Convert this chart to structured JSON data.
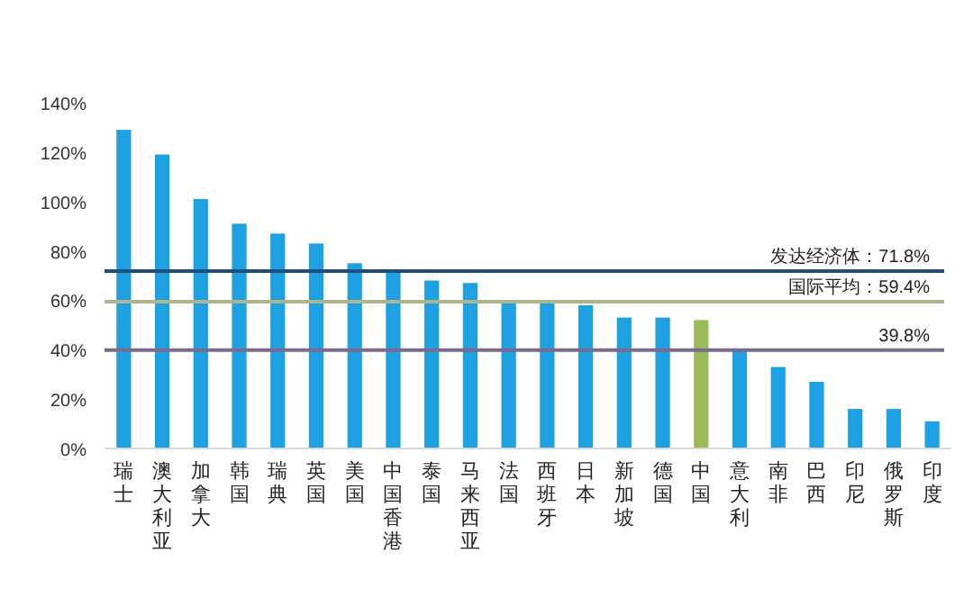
{
  "chart_data": {
    "type": "bar",
    "categories": [
      "瑞士",
      "澳大利亚",
      "加拿大",
      "韩国",
      "瑞典",
      "英国",
      "美国",
      "中国香港",
      "泰国",
      "马来西亚",
      "法国",
      "西班牙",
      "日本",
      "新加坡",
      "德国",
      "中国",
      "意大利",
      "南非",
      "巴西",
      "印尼",
      "俄罗斯",
      "印度"
    ],
    "values": [
      129,
      119,
      101,
      91,
      87,
      83,
      75,
      72,
      68,
      67,
      59,
      59,
      58,
      53,
      53,
      52,
      40,
      33,
      27,
      16,
      16,
      11
    ],
    "colors": [
      "#1da1e2",
      "#1da1e2",
      "#1da1e2",
      "#1da1e2",
      "#1da1e2",
      "#1da1e2",
      "#1da1e2",
      "#1da1e2",
      "#1da1e2",
      "#1da1e2",
      "#1da1e2",
      "#1da1e2",
      "#1da1e2",
      "#1da1e2",
      "#1da1e2",
      "#9bbb59",
      "#1da1e2",
      "#1da1e2",
      "#1da1e2",
      "#1da1e2",
      "#1da1e2",
      "#1da1e2"
    ],
    "ylim": [
      0,
      140
    ],
    "yticks": [
      {
        "value": 0,
        "label": "0%"
      },
      {
        "value": 20,
        "label": "20%"
      },
      {
        "value": 40,
        "label": "40%"
      },
      {
        "value": 60,
        "label": "60%"
      },
      {
        "value": 80,
        "label": "80%"
      },
      {
        "value": 100,
        "label": "100%"
      },
      {
        "value": 120,
        "label": "120%"
      },
      {
        "value": 140,
        "label": "140%"
      }
    ],
    "ref_lines": [
      {
        "axis": "y",
        "value": 71.8,
        "label": "发达经济体：71.8%",
        "color": "#1f4e79"
      },
      {
        "axis": "y",
        "value": 59.4,
        "label": "国际平均：59.4%",
        "color": "#b3b38a"
      },
      {
        "axis": "y",
        "value": 39.8,
        "label": "39.8%",
        "color": "#7a6a8c"
      }
    ],
    "grid": false
  }
}
